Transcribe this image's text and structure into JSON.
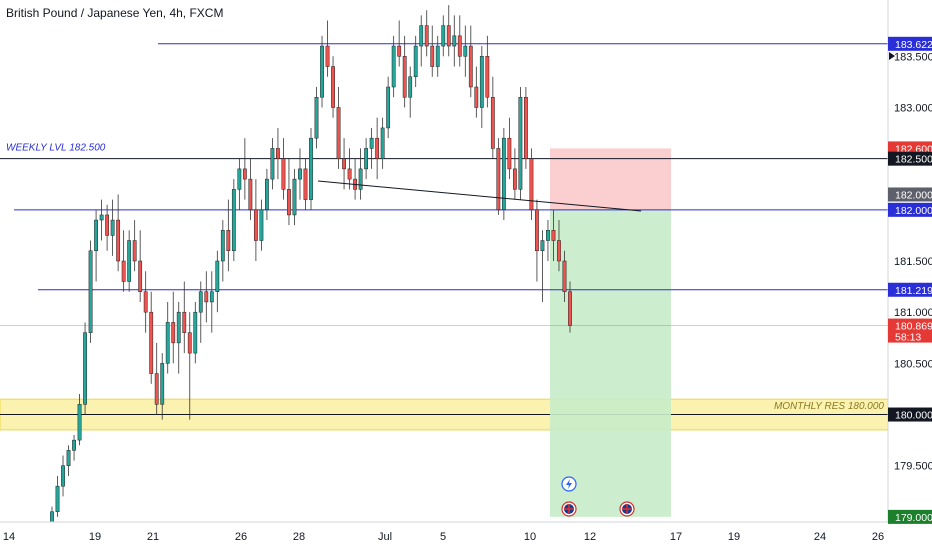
{
  "chart_title": "British Pound / Japanese Yen, 4h, FXCM",
  "chart_data": {
    "type": "candlestick",
    "x_tick_labels": [
      "14",
      "19",
      "21",
      "26",
      "28",
      "Jul",
      "5",
      "10",
      "12",
      "17",
      "19",
      "24",
      "26"
    ],
    "y_tick_labels": [
      "183.500",
      "183.000",
      "182.500",
      "182.000",
      "181.500",
      "181.000",
      "180.500",
      "180.000",
      "179.500",
      "179.000"
    ],
    "y_range": [
      178.95,
      184.05
    ],
    "current_price": "180.869",
    "countdown": "58:13",
    "horizontal_levels": [
      {
        "price": 183.622,
        "label": "183.622",
        "color": "#2a2ed6"
      },
      {
        "price": 182.5,
        "label": "182.500",
        "color": "#131722",
        "annotation": "WEEKLY LVL 182.500"
      },
      {
        "price": 182.0,
        "label": "182.000",
        "color": "#2a2ed6"
      },
      {
        "price": 181.219,
        "label": "181.219",
        "color": "#2a2ed6"
      }
    ],
    "zone": {
      "top": 180.15,
      "bottom": 179.85,
      "center": 180.0,
      "label": "180.000",
      "annotation": "MONTHLY RES 180.000"
    },
    "position": {
      "stop": "182.600",
      "entry": "182.000",
      "target": "179.000",
      "stop_price": 182.6,
      "entry_price": 182.0,
      "target_price": 179.0
    },
    "colors": {
      "up": "#26a69a",
      "down": "#ef5350",
      "level_blue": "#2a2ed6",
      "zone": "#f8e979",
      "profit": "#c8ecc9",
      "loss": "#fbcaca"
    },
    "candles": [
      [
        178.95,
        179.1,
        178.85,
        179.05
      ],
      [
        179.05,
        179.4,
        179.0,
        179.3
      ],
      [
        179.3,
        179.6,
        179.2,
        179.5
      ],
      [
        179.5,
        179.7,
        179.4,
        179.65
      ],
      [
        179.65,
        179.8,
        179.55,
        179.75
      ],
      [
        179.75,
        180.2,
        179.7,
        180.1
      ],
      [
        180.1,
        180.9,
        180.0,
        180.8
      ],
      [
        180.8,
        181.7,
        180.7,
        181.6
      ],
      [
        181.6,
        182.0,
        181.3,
        181.9
      ],
      [
        181.9,
        182.1,
        181.7,
        181.95
      ],
      [
        181.95,
        182.05,
        181.6,
        181.75
      ],
      [
        181.75,
        182.1,
        181.55,
        181.9
      ],
      [
        181.9,
        182.15,
        181.4,
        181.5
      ],
      [
        181.5,
        181.8,
        181.2,
        181.3
      ],
      [
        181.3,
        181.8,
        181.2,
        181.7
      ],
      [
        181.7,
        181.9,
        181.4,
        181.5
      ],
      [
        181.5,
        181.8,
        181.1,
        181.2
      ],
      [
        181.2,
        181.4,
        180.8,
        181.0
      ],
      [
        181.0,
        181.2,
        180.3,
        180.4
      ],
      [
        180.4,
        180.7,
        180.0,
        180.1
      ],
      [
        180.1,
        180.6,
        179.95,
        180.5
      ],
      [
        180.5,
        181.1,
        180.4,
        180.9
      ],
      [
        180.9,
        181.2,
        180.5,
        180.7
      ],
      [
        180.7,
        181.1,
        180.4,
        181.0
      ],
      [
        181.0,
        181.3,
        180.6,
        180.8
      ],
      [
        180.8,
        181.0,
        179.95,
        180.6
      ],
      [
        180.6,
        181.1,
        180.5,
        181.0
      ],
      [
        181.0,
        181.3,
        180.7,
        181.2
      ],
      [
        181.2,
        181.4,
        180.9,
        181.1
      ],
      [
        181.1,
        181.4,
        180.8,
        181.2
      ],
      [
        181.2,
        181.6,
        181.0,
        181.5
      ],
      [
        181.5,
        181.9,
        181.3,
        181.8
      ],
      [
        181.8,
        182.1,
        181.4,
        181.6
      ],
      [
        181.6,
        182.3,
        181.5,
        182.2
      ],
      [
        182.2,
        182.5,
        182.0,
        182.4
      ],
      [
        182.4,
        182.7,
        182.1,
        182.3
      ],
      [
        182.3,
        182.5,
        181.9,
        182.0
      ],
      [
        182.0,
        182.3,
        181.5,
        181.7
      ],
      [
        181.7,
        182.1,
        181.6,
        182.0
      ],
      [
        182.0,
        182.4,
        181.9,
        182.3
      ],
      [
        182.3,
        182.7,
        182.2,
        182.6
      ],
      [
        182.6,
        182.8,
        182.3,
        182.5
      ],
      [
        182.5,
        182.7,
        182.1,
        182.2
      ],
      [
        182.2,
        182.5,
        181.85,
        181.95
      ],
      [
        181.95,
        182.4,
        181.85,
        182.3
      ],
      [
        182.3,
        182.6,
        182.1,
        182.4
      ],
      [
        182.4,
        182.5,
        182.0,
        182.1
      ],
      [
        182.1,
        182.8,
        182.0,
        182.7
      ],
      [
        182.7,
        183.2,
        182.6,
        183.1
      ],
      [
        183.1,
        183.7,
        183.0,
        183.6
      ],
      [
        183.6,
        183.85,
        183.3,
        183.4
      ],
      [
        183.4,
        183.5,
        182.9,
        183.0
      ],
      [
        183.0,
        183.2,
        182.4,
        182.5
      ],
      [
        182.5,
        182.7,
        182.2,
        182.4
      ],
      [
        182.4,
        182.6,
        182.2,
        182.3
      ],
      [
        182.3,
        182.5,
        182.1,
        182.2
      ],
      [
        182.2,
        182.6,
        182.1,
        182.4
      ],
      [
        182.4,
        182.7,
        182.3,
        182.6
      ],
      [
        182.6,
        182.8,
        182.4,
        182.7
      ],
      [
        182.7,
        182.9,
        182.3,
        182.5
      ],
      [
        182.5,
        182.9,
        182.4,
        182.8
      ],
      [
        182.8,
        183.3,
        182.7,
        183.2
      ],
      [
        183.2,
        183.7,
        183.1,
        183.6
      ],
      [
        183.6,
        183.85,
        183.4,
        183.5
      ],
      [
        183.5,
        183.7,
        183.0,
        183.1
      ],
      [
        183.1,
        183.4,
        182.9,
        183.3
      ],
      [
        183.3,
        183.7,
        183.2,
        183.6
      ],
      [
        183.6,
        183.9,
        183.4,
        183.8
      ],
      [
        183.8,
        183.95,
        183.5,
        183.6
      ],
      [
        183.6,
        183.8,
        183.3,
        183.4
      ],
      [
        183.4,
        183.7,
        183.3,
        183.6
      ],
      [
        183.6,
        183.9,
        183.5,
        183.8
      ],
      [
        183.8,
        184.0,
        183.5,
        183.6
      ],
      [
        183.6,
        183.9,
        183.4,
        183.7
      ],
      [
        183.7,
        183.9,
        183.4,
        183.5
      ],
      [
        183.5,
        183.8,
        183.3,
        183.6
      ],
      [
        183.6,
        183.8,
        183.1,
        183.2
      ],
      [
        183.2,
        183.4,
        182.9,
        183.0
      ],
      [
        183.0,
        183.6,
        182.8,
        183.5
      ],
      [
        183.5,
        183.7,
        183.0,
        183.1
      ],
      [
        183.1,
        183.3,
        182.5,
        182.6
      ],
      [
        182.6,
        182.7,
        181.95,
        182.0
      ],
      [
        182.0,
        182.8,
        181.9,
        182.7
      ],
      [
        182.7,
        182.9,
        182.3,
        182.4
      ],
      [
        182.4,
        182.6,
        182.1,
        182.2
      ],
      [
        182.2,
        183.2,
        182.1,
        183.1
      ],
      [
        183.1,
        183.2,
        182.4,
        182.5
      ],
      [
        182.5,
        182.6,
        181.9,
        182.0
      ],
      [
        182.0,
        182.1,
        181.3,
        181.6
      ],
      [
        181.6,
        181.8,
        181.1,
        181.7
      ],
      [
        181.7,
        181.9,
        181.5,
        181.8
      ],
      [
        181.8,
        182.0,
        181.5,
        181.7
      ],
      [
        181.7,
        181.9,
        181.4,
        181.5
      ],
      [
        181.5,
        181.6,
        181.1,
        181.2
      ],
      [
        181.2,
        181.3,
        180.8,
        180.87
      ]
    ]
  }
}
